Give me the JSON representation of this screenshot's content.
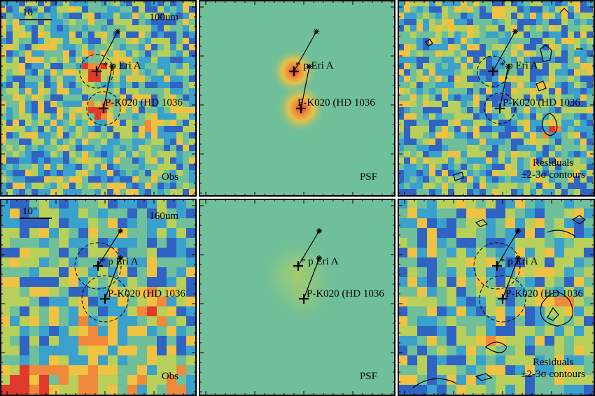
{
  "colors": {
    "background": "#6fbf9a",
    "panel_border": "#000000",
    "marker": "#000000",
    "colormap": [
      "#3b1f8c",
      "#2f63c4",
      "#3aa0cc",
      "#6fbf9a",
      "#b8cf5a",
      "#f0c241",
      "#f08a3a",
      "#e0392b"
    ]
  },
  "labels": {
    "scale": "10\"",
    "star_a": "p Eri A",
    "star_b": "P-K020 (HD 1036",
    "band_top": "100um",
    "band_bottom": "160um",
    "obs": "Obs",
    "psf": "PSF",
    "residuals_1": "Residuals",
    "residuals_2": "±2-3σ contours"
  },
  "panels": [
    {
      "id": "obs-100",
      "type": "obs",
      "band": "100um"
    },
    {
      "id": "psf-100",
      "type": "psf"
    },
    {
      "id": "res-100",
      "type": "residuals"
    },
    {
      "id": "obs-160",
      "type": "obs",
      "band": "160um"
    },
    {
      "id": "psf-160",
      "type": "psf"
    },
    {
      "id": "res-160",
      "type": "residuals"
    }
  ]
}
